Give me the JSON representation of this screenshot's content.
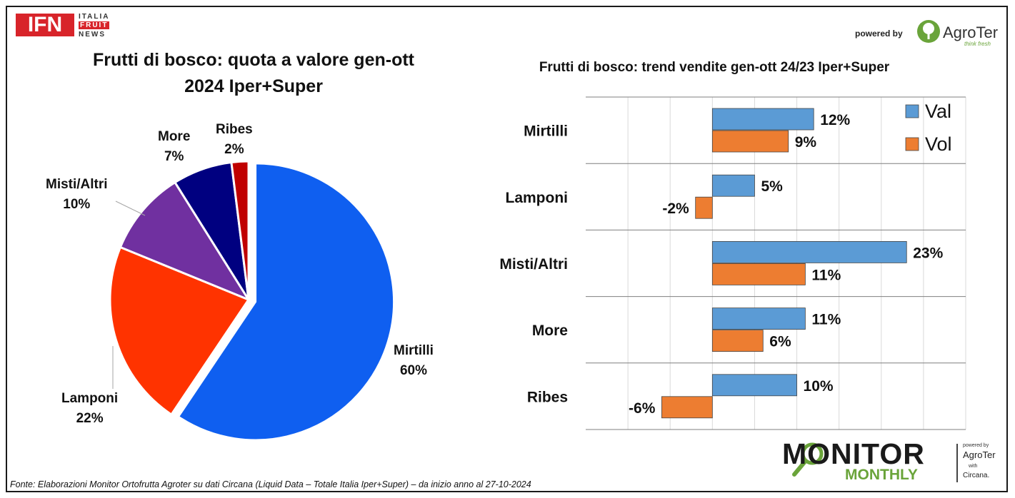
{
  "header": {
    "logo_text": "IFN",
    "logo_lines": [
      "ITALIA",
      "FRUIT",
      "NEWS"
    ],
    "powered_by": "powered by",
    "brand": "AgroTer",
    "brand_tagline": "think fresh"
  },
  "footer": {
    "source": "Fonte: Elaborazioni Monitor Ortofrutta Agroter su dati Circana (Liquid Data – Totale Italia Iper+Super) –  da inizio anno al 27-10-2024",
    "monitor_word": "MONITOR",
    "monthly_word": "MONTHLY",
    "powered_by": "powered by",
    "brand": "AgroTer",
    "with": "with",
    "partner": "Circana."
  },
  "colors": {
    "mirtilli": "#0f5ff0",
    "lamponi": "#ff3300",
    "misti": "#7030a0",
    "more": "#000080",
    "ribes": "#c00000",
    "val": "#5b9bd5",
    "vol": "#ed7d31",
    "brand_red": "#d8242a",
    "brand_green": "#6aa43a"
  },
  "chart_data": [
    {
      "type": "pie",
      "title_line1": "Frutti di bosco: quota a valore gen-ott",
      "title_line2": "2024 Iper+Super",
      "slices": [
        {
          "label": "Mirtilli",
          "value": 60,
          "display": "60%",
          "color": "#0f5ff0",
          "exploded": true
        },
        {
          "label": "Lamponi",
          "value": 22,
          "display": "22%",
          "color": "#ff3300",
          "exploded": false
        },
        {
          "label": "Misti/Altri",
          "value": 10,
          "display": "10%",
          "color": "#7030a0",
          "exploded": false
        },
        {
          "label": "More",
          "value": 7,
          "display": "7%",
          "color": "#000080",
          "exploded": false
        },
        {
          "label": "Ribes",
          "value": 2,
          "display": "2%",
          "color": "#c00000",
          "exploded": false
        }
      ]
    },
    {
      "type": "bar",
      "orientation": "horizontal",
      "title": "Frutti di bosco: trend vendite gen-ott 24/23 Iper+Super",
      "categories": [
        "Mirtilli",
        "Lamponi",
        "Misti/Altri",
        "More",
        "Ribes"
      ],
      "series": [
        {
          "name": "Val",
          "values": [
            12,
            5,
            23,
            11,
            10
          ],
          "labels": [
            "12%",
            "5%",
            "23%",
            "11%",
            "10%"
          ],
          "color": "#5b9bd5"
        },
        {
          "name": "Vol",
          "values": [
            9,
            -2,
            11,
            6,
            -6
          ],
          "labels": [
            "9%",
            "-2%",
            "11%",
            "6%",
            "-6%"
          ],
          "color": "#ed7d31"
        }
      ],
      "xlim": [
        -15,
        30
      ],
      "grid": true,
      "legend": "top-right"
    }
  ]
}
